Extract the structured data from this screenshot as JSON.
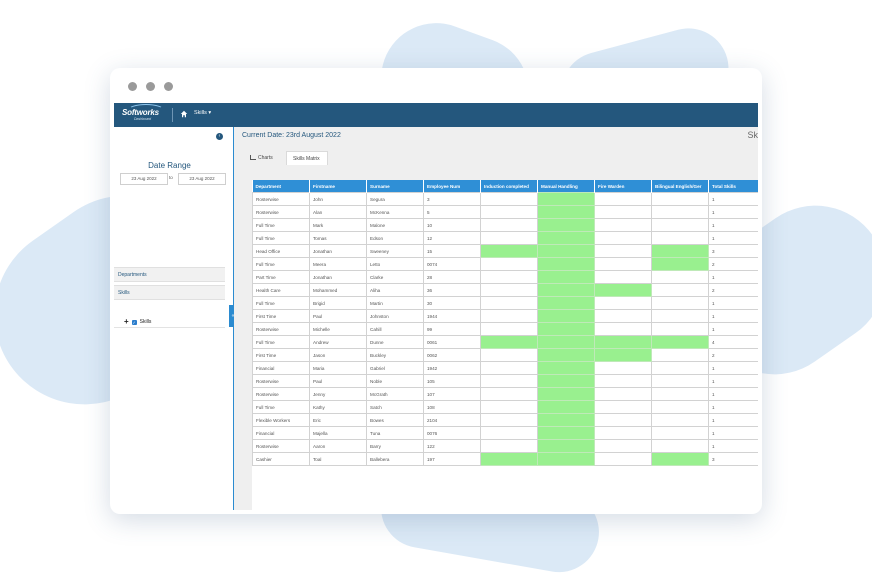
{
  "app": {
    "logo_text": "Softworks",
    "logo_sub": "Dashboard",
    "nav_skills": "Skills ▾"
  },
  "sidebar": {
    "date_range_title": "Date Range",
    "date_from": "23 Aug 2022",
    "date_to_label": "to",
    "date_to": "23 Aug 2022",
    "departments": "Departments",
    "skills": "Skills",
    "skills_item": "Skills"
  },
  "main": {
    "current_date": "Current Date: 23rd August 2022",
    "page_title_partial": "Sk",
    "tabs": [
      "Charts",
      "Skills Matrix"
    ]
  },
  "colors": {
    "header": "#24577d",
    "accent": "#2f8fd6",
    "green": "#99f08f"
  },
  "table": {
    "columns": [
      "Department",
      "Firstname",
      "Surname",
      "Employee Num",
      "Induction completed",
      "Manual Handling",
      "Fire Warden",
      "Bilingual English/Ger",
      "Total Skills"
    ],
    "rows": [
      {
        "c": [
          "Rosterwise",
          "John",
          "Segura",
          "3"
        ],
        "g": [
          0,
          1,
          0,
          0
        ],
        "t": "1"
      },
      {
        "c": [
          "Rosterwise",
          "Alan",
          "McKenna",
          "5"
        ],
        "g": [
          0,
          1,
          0,
          0
        ],
        "t": "1"
      },
      {
        "c": [
          "Full Time",
          "Mark",
          "Malone",
          "10"
        ],
        "g": [
          0,
          1,
          0,
          0
        ],
        "t": "1"
      },
      {
        "c": [
          "Full Time",
          "Tomas",
          "Edson",
          "12"
        ],
        "g": [
          0,
          1,
          0,
          0
        ],
        "t": "1"
      },
      {
        "c": [
          "Head Office",
          "Jonathan",
          "Sweeney",
          "15"
        ],
        "g": [
          1,
          1,
          0,
          1
        ],
        "t": "3"
      },
      {
        "c": [
          "Full Time",
          "Meera",
          "Letto",
          "0074"
        ],
        "g": [
          0,
          1,
          0,
          1
        ],
        "t": "2"
      },
      {
        "c": [
          "Part Time",
          "Jonathan",
          "Clarke",
          "28"
        ],
        "g": [
          0,
          1,
          0,
          0
        ],
        "t": "1"
      },
      {
        "c": [
          "Health Care",
          "Mohammed",
          "Aliha",
          "36"
        ],
        "g": [
          0,
          1,
          1,
          0
        ],
        "t": "2"
      },
      {
        "c": [
          "Full Time",
          "Brigid",
          "Martin",
          "30"
        ],
        "g": [
          0,
          1,
          0,
          0
        ],
        "t": "1"
      },
      {
        "c": [
          "First Time",
          "Paul",
          "Johnston",
          "1944"
        ],
        "g": [
          0,
          1,
          0,
          0
        ],
        "t": "1"
      },
      {
        "c": [
          "Rosterwise",
          "Michelle",
          "Cahill",
          "99"
        ],
        "g": [
          0,
          1,
          0,
          0
        ],
        "t": "1"
      },
      {
        "c": [
          "Full Time",
          "Andrew",
          "Dunne",
          "0061"
        ],
        "g": [
          1,
          1,
          1,
          1
        ],
        "t": "4"
      },
      {
        "c": [
          "First Time",
          "Jason",
          "Buckley",
          "0062"
        ],
        "g": [
          0,
          1,
          1,
          0
        ],
        "t": "2"
      },
      {
        "c": [
          "Financial",
          "Maria",
          "Gabriel",
          "1942"
        ],
        "g": [
          0,
          1,
          0,
          0
        ],
        "t": "1"
      },
      {
        "c": [
          "Rosterwise",
          "Paul",
          "Noble",
          "105"
        ],
        "g": [
          0,
          1,
          0,
          0
        ],
        "t": "1"
      },
      {
        "c": [
          "Rosterwise",
          "Jenny",
          "McGrath",
          "107"
        ],
        "g": [
          0,
          1,
          0,
          0
        ],
        "t": "1"
      },
      {
        "c": [
          "Full Time",
          "Kathy",
          "Satch",
          "108"
        ],
        "g": [
          0,
          1,
          0,
          0
        ],
        "t": "1"
      },
      {
        "c": [
          "Flexible Workers",
          "Eric",
          "Bowes",
          "2104"
        ],
        "g": [
          0,
          1,
          0,
          0
        ],
        "t": "1"
      },
      {
        "c": [
          "Financial",
          "Majella",
          "Tuna",
          "0076"
        ],
        "g": [
          0,
          1,
          0,
          0
        ],
        "t": "1"
      },
      {
        "c": [
          "Rosterwise",
          "Aaron",
          "Barry",
          "122"
        ],
        "g": [
          0,
          1,
          0,
          0
        ],
        "t": "1"
      },
      {
        "c": [
          "Cashier",
          "Toal",
          "Ballebera",
          "197"
        ],
        "g": [
          1,
          1,
          0,
          1
        ],
        "t": "3"
      }
    ]
  }
}
